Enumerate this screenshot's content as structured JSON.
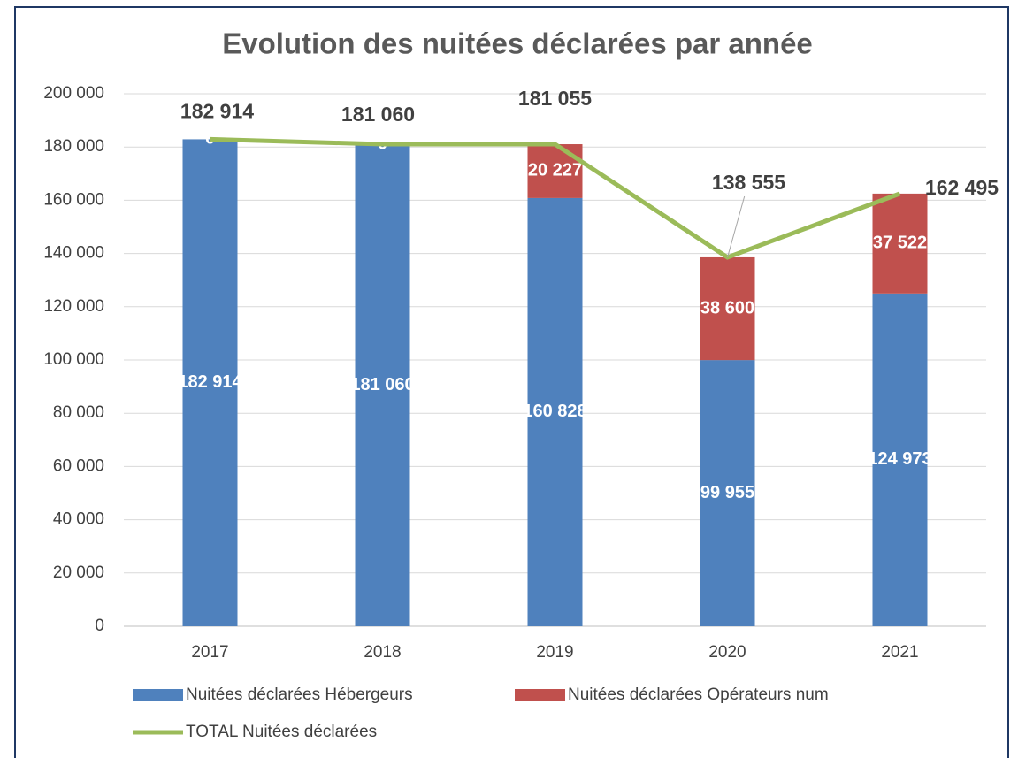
{
  "chart_data": {
    "type": "bar",
    "stacked": true,
    "title": "Evolution des nuitées déclarées par année",
    "categories": [
      "2017",
      "2018",
      "2019",
      "2020",
      "2021"
    ],
    "series": [
      {
        "name": "Nuitées déclarées Hébergeurs",
        "type": "bar",
        "color": "#4f81bd",
        "values": [
          182914,
          181060,
          160828,
          99955,
          124973
        ],
        "value_labels": [
          "182 914",
          "181 060",
          "160 828",
          "99 955",
          "124 973"
        ]
      },
      {
        "name": "Nuitées déclarées Opérateurs num",
        "type": "bar",
        "color": "#c0504d",
        "values": [
          0,
          0,
          20227,
          38600,
          37522
        ],
        "value_labels": [
          "0",
          "0",
          "20 227",
          "38 600",
          "37 522"
        ]
      },
      {
        "name": "TOTAL Nuitées déclarées",
        "type": "line",
        "color": "#9bbb59",
        "values": [
          182914,
          181060,
          181055,
          138555,
          162495
        ],
        "value_labels": [
          "182 914",
          "181 060",
          "181 055",
          "138 555",
          "162 495"
        ]
      }
    ],
    "ylim": [
      0,
      200000
    ],
    "yticks": [
      0,
      {
        "value": 20000,
        "label": "20 000"
      },
      {
        "value": 40000,
        "label": "40 000"
      },
      {
        "value": 60000,
        "label": "60 000"
      },
      {
        "value": 80000,
        "label": "80 000"
      },
      {
        "value": 100000,
        "label": "100 000"
      },
      {
        "value": 120000,
        "label": "120 000"
      },
      {
        "value": 140000,
        "label": "140 000"
      },
      {
        "value": 160000,
        "label": "160 000"
      },
      {
        "value": 180000,
        "label": "180 000"
      },
      {
        "value": 200000,
        "label": "200 000"
      }
    ],
    "grid": true,
    "legend": "bottom"
  }
}
